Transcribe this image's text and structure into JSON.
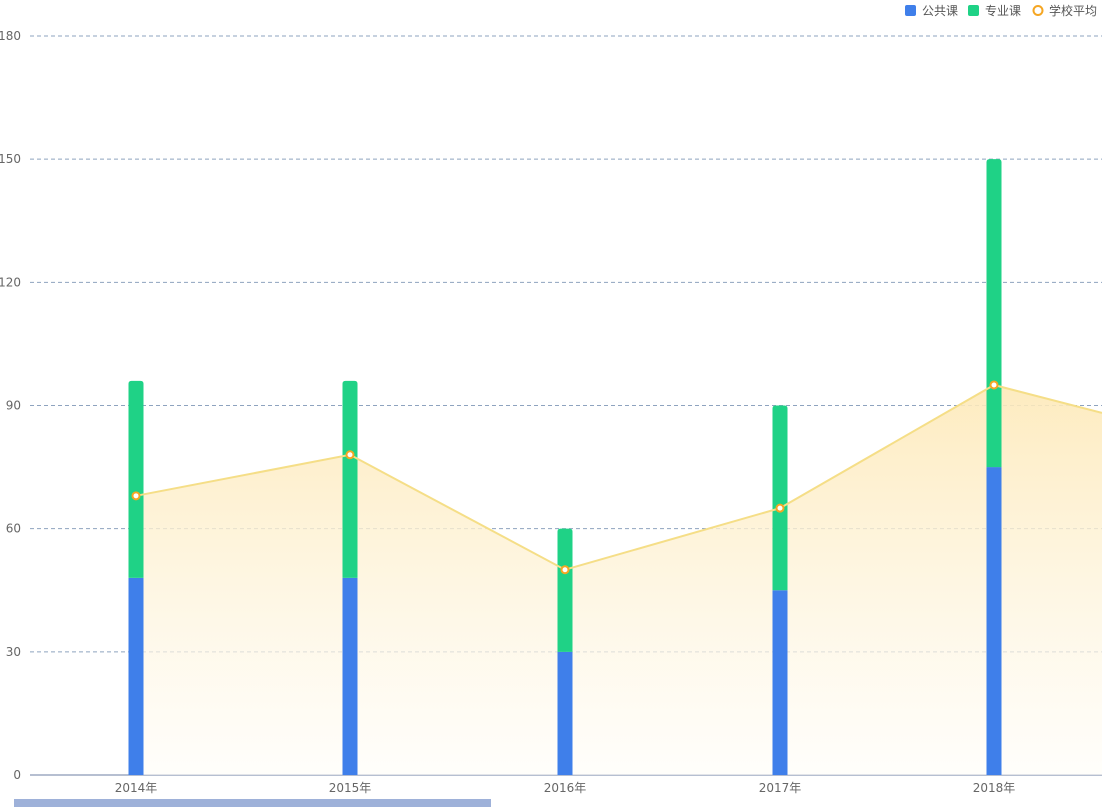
{
  "chart_data": {
    "type": "bar",
    "categories": [
      "2014年",
      "2015年",
      "2016年",
      "2017年",
      "2018年"
    ],
    "series": [
      {
        "name": "公共课",
        "type": "bar",
        "stack": "total",
        "color": "#3f7fea",
        "values": [
          48,
          48,
          30,
          45,
          75
        ]
      },
      {
        "name": "专业课",
        "type": "bar",
        "stack": "total",
        "color": "#1fd286",
        "values": [
          48,
          48,
          30,
          45,
          75
        ]
      },
      {
        "name": "学校平均",
        "type": "area-line",
        "color": "#f5de87",
        "marker_color": "#f5a623",
        "values": [
          68,
          78,
          50,
          65,
          95
        ]
      }
    ],
    "ylim": [
      0,
      180
    ],
    "yticks": [
      "0",
      "30",
      "60",
      "90",
      "120",
      "150",
      "180"
    ],
    "grid": true,
    "legend_position": "top-right"
  }
}
